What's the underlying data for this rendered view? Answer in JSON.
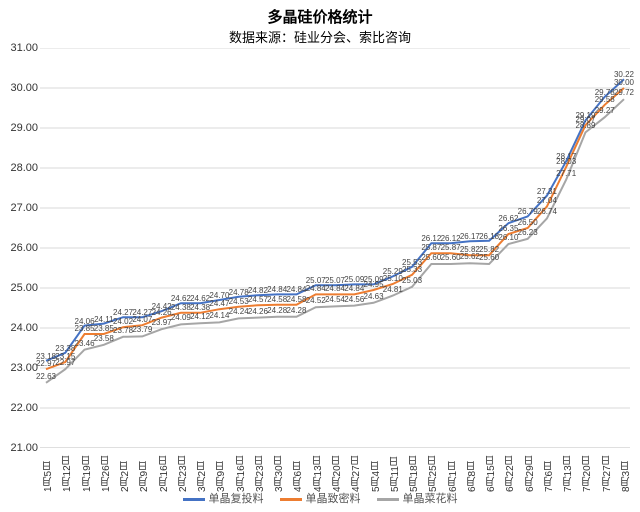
{
  "title": "多晶硅价格统计",
  "subtitle": "数据来源：硅业分会、索比咨询",
  "chart": {
    "type": "line",
    "ylim": [
      21.0,
      31.0
    ],
    "ytick_step": 1.0,
    "y_decimals": 2,
    "background_color": "#ffffff",
    "grid_color": "#d9d9d9",
    "axis_color": "#bfbfbf",
    "title_fontsize": 15,
    "subtitle_fontsize": 13,
    "label_fontsize": 11,
    "xlabel_fontsize": 10,
    "datalabel_fontsize": 8,
    "line_width": 2,
    "categories": [
      "1月5日",
      "1月12日",
      "1月19日",
      "1月26日",
      "2月2日",
      "2月9日",
      "2月16日",
      "2月23日",
      "3月2日",
      "3月9日",
      "3月16日",
      "3月23日",
      "3月30日",
      "4月6日",
      "4月13日",
      "4月20日",
      "4月27日",
      "5月4日",
      "5月11日",
      "5月18日",
      "5月25日",
      "6月1日",
      "6月8日",
      "6月15日",
      "6月22日",
      "6月29日",
      "7月6日",
      "7月13日",
      "7月20日",
      "7月27日",
      "8月3日"
    ],
    "series": [
      {
        "name": "单晶复投料",
        "color": "#4472c4",
        "values": [
          23.18,
          23.38,
          24.06,
          24.11,
          24.27,
          24.27,
          24.42,
          24.62,
          24.62,
          24.7,
          24.78,
          24.82,
          24.84,
          24.84,
          25.07,
          25.07,
          25.09,
          25.09,
          25.29,
          25.53,
          26.12,
          26.12,
          26.17,
          26.18,
          26.62,
          26.79,
          27.31,
          28.17,
          29.19,
          29.78,
          30.22
        ]
      },
      {
        "name": "单晶致密料",
        "color": "#ed7d31",
        "values": [
          22.97,
          23.15,
          23.85,
          23.85,
          24.02,
          24.07,
          24.26,
          24.38,
          24.38,
          24.47,
          24.53,
          24.57,
          24.58,
          24.58,
          24.84,
          24.84,
          24.84,
          24.95,
          25.1,
          25.33,
          25.87,
          25.87,
          25.82,
          25.82,
          26.35,
          26.5,
          27.04,
          28.03,
          29.07,
          29.58,
          30.0
        ]
      },
      {
        "name": "单晶菜花料",
        "color": "#a6a6a6",
        "values": [
          22.63,
          22.97,
          23.46,
          23.58,
          23.78,
          23.79,
          23.97,
          24.09,
          24.12,
          24.14,
          24.24,
          24.26,
          24.28,
          24.28,
          24.52,
          24.54,
          24.56,
          24.63,
          24.81,
          25.03,
          25.6,
          25.6,
          25.62,
          25.6,
          26.1,
          26.23,
          26.74,
          27.71,
          28.89,
          29.27,
          29.72
        ]
      }
    ],
    "legend_position": "bottom"
  }
}
